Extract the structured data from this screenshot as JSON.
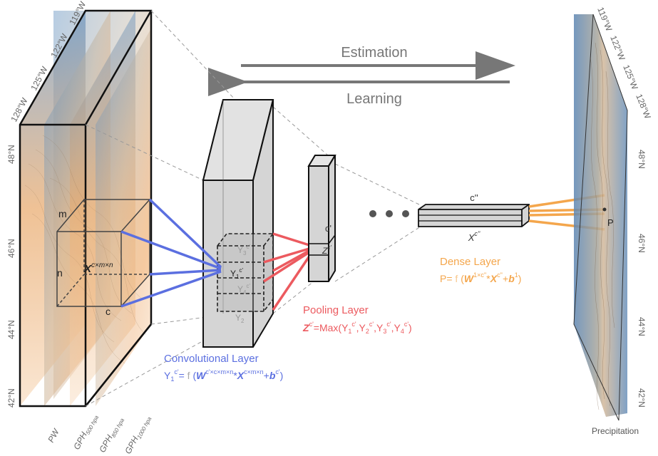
{
  "arrows": {
    "estimation": "Estimation",
    "learning": "Learning"
  },
  "input": {
    "labels": {
      "m": "m",
      "n": "n",
      "c": "c",
      "x_base": "X",
      "x_sup": "c×m×n"
    },
    "longitudes": [
      "128°W",
      "125°W",
      "122°W",
      "119°W"
    ],
    "latitudes": [
      "48°N",
      "46°N",
      "44°N",
      "42°N"
    ],
    "channels": [
      {
        "base": "PW",
        "sub": ""
      },
      {
        "base": "GPH",
        "sub": "500 hpa"
      },
      {
        "base": "GPH",
        "sub": "850 hpa"
      },
      {
        "base": "GPH",
        "sub": "1000 hpa"
      }
    ]
  },
  "conv": {
    "y_top": "Y",
    "y_top_sub": "3",
    "y_mid": "Y",
    "y_mid_sub": "1",
    "y_low": "Y",
    "y_low_sub": "4",
    "y_bot": "Y",
    "y_bot_sub": "2",
    "y_sup": "c'",
    "title": "Convolutional Layer",
    "eq_lhs": "Y",
    "eq_lhs_sub": "1",
    "eq_lhs_sup": "c'",
    "eq_eq": "=",
    "eq_f": "f",
    "eq_open": "(",
    "eq_w": "W",
    "eq_w_sup": "c'×c×m×n",
    "eq_star": "*",
    "eq_x": "X",
    "eq_x_sup": "c×m×n",
    "eq_plus": "+",
    "eq_b": "b",
    "eq_b_sup": "c'",
    "eq_close": ")"
  },
  "pool": {
    "c_label": "c'",
    "z_label": "Z",
    "z_sup": "c'",
    "title": "Pooling Layer",
    "eq_lhs": "Z",
    "eq_lhs_sup": "c'",
    "eq_rhs": "=Max(Y",
    "eq_terms": [
      {
        "sub": "1",
        "sup": "c'"
      },
      {
        "sub": "2",
        "sup": "c'"
      },
      {
        "sub": "3",
        "sup": "c'"
      },
      {
        "sub": "4",
        "sup": "c'"
      }
    ],
    "eq_close": ")"
  },
  "dense": {
    "c_label": "c''",
    "x_label": "X",
    "x_sup": "c''",
    "title": "Dense Layer",
    "eq_lhs": "P=",
    "eq_f": "f",
    "eq_open": "(",
    "eq_w": "W",
    "eq_w_sup": "1×c''",
    "eq_star": "*",
    "eq_x": "X",
    "eq_x_sup": "c''",
    "eq_plus": "+",
    "eq_b": "b",
    "eq_b_sup": "1",
    "eq_close": ")"
  },
  "output": {
    "p_label": "P",
    "caption": "Precipitation",
    "longitudes": [
      "119°W",
      "122°W",
      "125°W",
      "128°W"
    ],
    "latitudes": [
      "48°N",
      "46°N",
      "44°N",
      "42°N"
    ]
  },
  "colors": {
    "conv": "#5b6fe0",
    "pool": "#ec5a5f",
    "dense": "#f4a64c",
    "axis_text": "#666666",
    "arrow": "#777777",
    "block_fill": "#d9d9d9",
    "map_blue": "#7aa3c9",
    "map_orange": "#f3b67a"
  }
}
